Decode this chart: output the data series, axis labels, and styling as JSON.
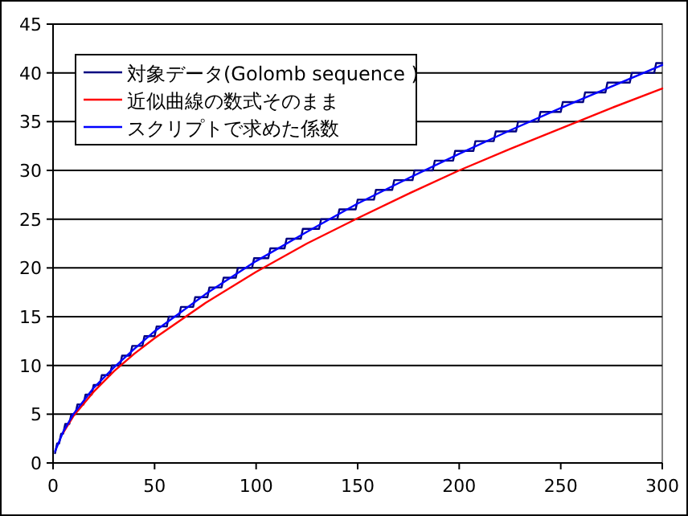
{
  "chart_data": {
    "type": "line",
    "xlim": [
      0,
      300
    ],
    "ylim": [
      0,
      45
    ],
    "xticks": [
      0,
      50,
      100,
      150,
      200,
      250,
      300
    ],
    "yticks": [
      0,
      5,
      10,
      15,
      20,
      25,
      30,
      35,
      40,
      45
    ],
    "grid": "y",
    "legend": "top left",
    "line_style": "solid",
    "series": [
      {
        "name": "対象データ(Golomb sequence )",
        "color": "#000080",
        "x": [
          1,
          2,
          3,
          4,
          5,
          6,
          8,
          9,
          11,
          12,
          15,
          16,
          19,
          20,
          23,
          24,
          28,
          29,
          33,
          34,
          38,
          39,
          44,
          45,
          50,
          51,
          56,
          57,
          62,
          63,
          69,
          70,
          76,
          77,
          83,
          84,
          90,
          91,
          98,
          99,
          106,
          107,
          114,
          115,
          122,
          123,
          131,
          132,
          140,
          141,
          149,
          150,
          158,
          159,
          167,
          168,
          177,
          178,
          187,
          188,
          197,
          198,
          207,
          208,
          217,
          218,
          228,
          229,
          239,
          240,
          250,
          251,
          261,
          262,
          272,
          273,
          284,
          285,
          296,
          297,
          300
        ],
        "values": [
          1,
          2,
          2,
          3,
          3,
          4,
          4,
          5,
          5,
          6,
          6,
          7,
          7,
          8,
          8,
          9,
          9,
          10,
          10,
          11,
          11,
          12,
          12,
          13,
          13,
          14,
          14,
          15,
          15,
          16,
          16,
          17,
          17,
          18,
          18,
          19,
          19,
          20,
          20,
          21,
          21,
          22,
          22,
          23,
          23,
          24,
          24,
          25,
          25,
          26,
          26,
          27,
          27,
          28,
          28,
          29,
          29,
          30,
          30,
          31,
          31,
          32,
          32,
          33,
          33,
          34,
          34,
          35,
          35,
          36,
          36,
          37,
          37,
          38,
          38,
          39,
          39,
          40,
          40,
          41,
          41
        ]
      },
      {
        "name": "近似曲線の数式そのまま",
        "color": "#ff0000",
        "x": [
          5,
          10,
          20,
          30,
          40,
          50,
          75,
          100,
          125,
          150,
          175,
          200,
          225,
          250,
          275,
          300
        ],
        "values": [
          3.1,
          4.8,
          7.3,
          9.4,
          11.2,
          12.8,
          16.4,
          19.6,
          22.5,
          25.1,
          27.6,
          30.0,
          32.2,
          34.3,
          36.4,
          38.4
        ]
      },
      {
        "name": "スクリプトで求めた係数",
        "color": "#0000ff",
        "x": [
          1,
          5,
          10,
          20,
          30,
          40,
          50,
          75,
          100,
          125,
          150,
          175,
          200,
          225,
          250,
          275,
          300
        ],
        "values": [
          1.2,
          3.2,
          5.0,
          7.7,
          9.8,
          11.7,
          13.5,
          17.3,
          20.7,
          23.7,
          26.6,
          29.2,
          31.7,
          34.1,
          36.4,
          38.6,
          40.8
        ]
      }
    ]
  }
}
